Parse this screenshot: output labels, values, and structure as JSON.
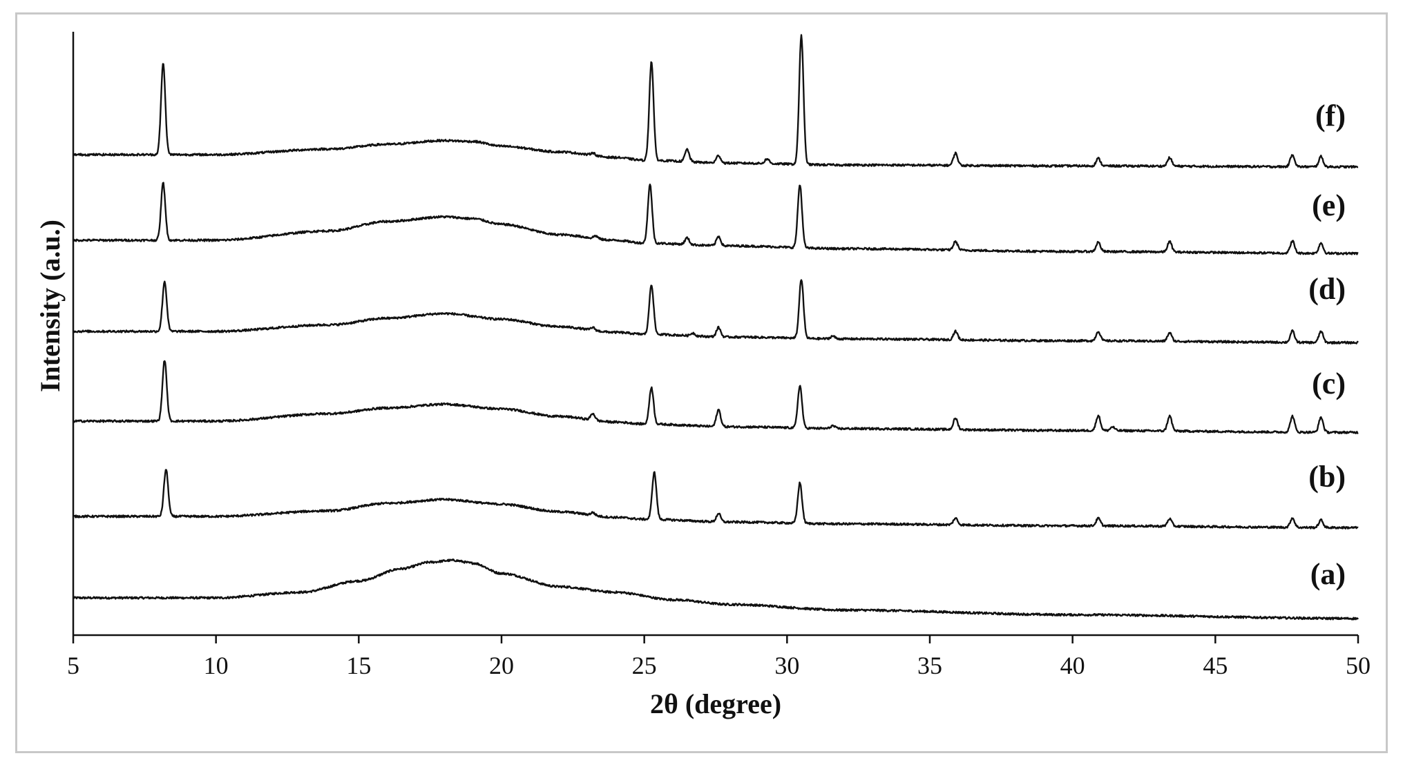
{
  "chart_data": {
    "type": "line",
    "title": "",
    "xlabel": "2θ (degree)",
    "ylabel": "Intensity (a.u.)",
    "xlim": [
      5,
      50
    ],
    "xticks": [
      5,
      10,
      15,
      20,
      25,
      30,
      35,
      40,
      45,
      50
    ],
    "yticks_shown": false,
    "grid": false,
    "legend": "none",
    "line_color": "#111111",
    "series": [
      {
        "label": "(a)",
        "baseline": {
          "x": [
            5,
            10,
            13,
            15,
            16.5,
            17.5,
            18.3,
            19,
            20,
            22,
            24,
            26,
            28,
            32,
            40,
            50
          ],
          "y": [
            0.0,
            0.0,
            0.06,
            0.18,
            0.31,
            0.38,
            0.4,
            0.37,
            0.26,
            0.12,
            0.06,
            -0.02,
            -0.07,
            -0.13,
            -0.18,
            -0.22
          ]
        },
        "peaks": []
      },
      {
        "label": "(b)",
        "baseline": {
          "x": [
            5,
            10,
            14,
            16,
            18,
            20,
            22,
            24,
            25,
            28,
            32,
            40,
            50
          ],
          "y": [
            0.0,
            0.0,
            0.06,
            0.14,
            0.18,
            0.13,
            0.05,
            -0.01,
            -0.03,
            -0.06,
            -0.08,
            -0.1,
            -0.12
          ]
        },
        "peaks": [
          {
            "x": 8.25,
            "h": 0.5
          },
          {
            "x": 23.2,
            "h": 0.03
          },
          {
            "x": 25.35,
            "h": 0.5
          },
          {
            "x": 27.6,
            "h": 0.09
          },
          {
            "x": 30.45,
            "h": 0.43
          },
          {
            "x": 35.9,
            "h": 0.07
          },
          {
            "x": 40.9,
            "h": 0.08
          },
          {
            "x": 43.4,
            "h": 0.08
          },
          {
            "x": 47.7,
            "h": 0.1
          },
          {
            "x": 48.7,
            "h": 0.08
          }
        ]
      },
      {
        "label": "(c)",
        "baseline": {
          "x": [
            5,
            10,
            14,
            16,
            18,
            20,
            22,
            24,
            25,
            28,
            32,
            40,
            50
          ],
          "y": [
            0.0,
            0.0,
            0.08,
            0.14,
            0.18,
            0.13,
            0.05,
            -0.01,
            -0.03,
            -0.06,
            -0.08,
            -0.1,
            -0.12
          ]
        },
        "peaks": [
          {
            "x": 8.2,
            "h": 0.65
          },
          {
            "x": 23.2,
            "h": 0.07
          },
          {
            "x": 25.25,
            "h": 0.39
          },
          {
            "x": 27.6,
            "h": 0.18
          },
          {
            "x": 30.45,
            "h": 0.45
          },
          {
            "x": 31.6,
            "h": 0.03
          },
          {
            "x": 35.9,
            "h": 0.12
          },
          {
            "x": 40.9,
            "h": 0.16
          },
          {
            "x": 41.4,
            "h": 0.04
          },
          {
            "x": 43.4,
            "h": 0.16
          },
          {
            "x": 47.7,
            "h": 0.17
          },
          {
            "x": 48.7,
            "h": 0.16
          }
        ]
      },
      {
        "label": "(d)",
        "baseline": {
          "x": [
            5,
            10,
            14,
            16,
            18,
            20,
            22,
            24,
            25,
            28,
            32,
            40,
            50
          ],
          "y": [
            0.0,
            0.0,
            0.07,
            0.14,
            0.19,
            0.13,
            0.05,
            -0.01,
            -0.03,
            -0.06,
            -0.08,
            -0.1,
            -0.12
          ]
        },
        "peaks": [
          {
            "x": 8.2,
            "h": 0.53
          },
          {
            "x": 23.2,
            "h": 0.03
          },
          {
            "x": 25.25,
            "h": 0.53
          },
          {
            "x": 26.7,
            "h": 0.03
          },
          {
            "x": 27.6,
            "h": 0.1
          },
          {
            "x": 30.5,
            "h": 0.63
          },
          {
            "x": 31.6,
            "h": 0.03
          },
          {
            "x": 35.9,
            "h": 0.09
          },
          {
            "x": 40.9,
            "h": 0.1
          },
          {
            "x": 43.4,
            "h": 0.09
          },
          {
            "x": 47.7,
            "h": 0.12
          },
          {
            "x": 48.7,
            "h": 0.12
          }
        ]
      },
      {
        "label": "(e)",
        "baseline": {
          "x": [
            5,
            10,
            14,
            16,
            18,
            19,
            20,
            22,
            24,
            25,
            28,
            32,
            40,
            50
          ],
          "y": [
            0.0,
            0.0,
            0.1,
            0.2,
            0.25,
            0.23,
            0.17,
            0.06,
            0.0,
            -0.03,
            -0.06,
            -0.09,
            -0.12,
            -0.14
          ]
        },
        "peaks": [
          {
            "x": 8.15,
            "h": 0.61
          },
          {
            "x": 23.3,
            "h": 0.03
          },
          {
            "x": 25.2,
            "h": 0.62
          },
          {
            "x": 26.5,
            "h": 0.07
          },
          {
            "x": 27.6,
            "h": 0.1
          },
          {
            "x": 30.45,
            "h": 0.67
          },
          {
            "x": 35.9,
            "h": 0.09
          },
          {
            "x": 40.9,
            "h": 0.1
          },
          {
            "x": 43.4,
            "h": 0.11
          },
          {
            "x": 47.7,
            "h": 0.13
          },
          {
            "x": 48.7,
            "h": 0.11
          }
        ]
      },
      {
        "label": "(f)",
        "baseline": {
          "x": [
            5,
            10,
            14,
            16,
            18,
            19,
            20,
            22,
            24,
            25,
            28,
            32,
            40,
            50
          ],
          "y": [
            0.0,
            0.0,
            0.06,
            0.11,
            0.15,
            0.14,
            0.09,
            0.03,
            -0.03,
            -0.06,
            -0.09,
            -0.11,
            -0.12,
            -0.13
          ]
        },
        "peaks": [
          {
            "x": 8.15,
            "h": 0.97
          },
          {
            "x": 23.2,
            "h": 0.03
          },
          {
            "x": 25.25,
            "h": 1.05
          },
          {
            "x": 26.5,
            "h": 0.13
          },
          {
            "x": 27.6,
            "h": 0.08
          },
          {
            "x": 29.3,
            "h": 0.05
          },
          {
            "x": 30.5,
            "h": 1.37
          },
          {
            "x": 35.9,
            "h": 0.13
          },
          {
            "x": 40.9,
            "h": 0.08
          },
          {
            "x": 43.4,
            "h": 0.09
          },
          {
            "x": 47.7,
            "h": 0.13
          },
          {
            "x": 48.7,
            "h": 0.11
          }
        ]
      }
    ]
  }
}
